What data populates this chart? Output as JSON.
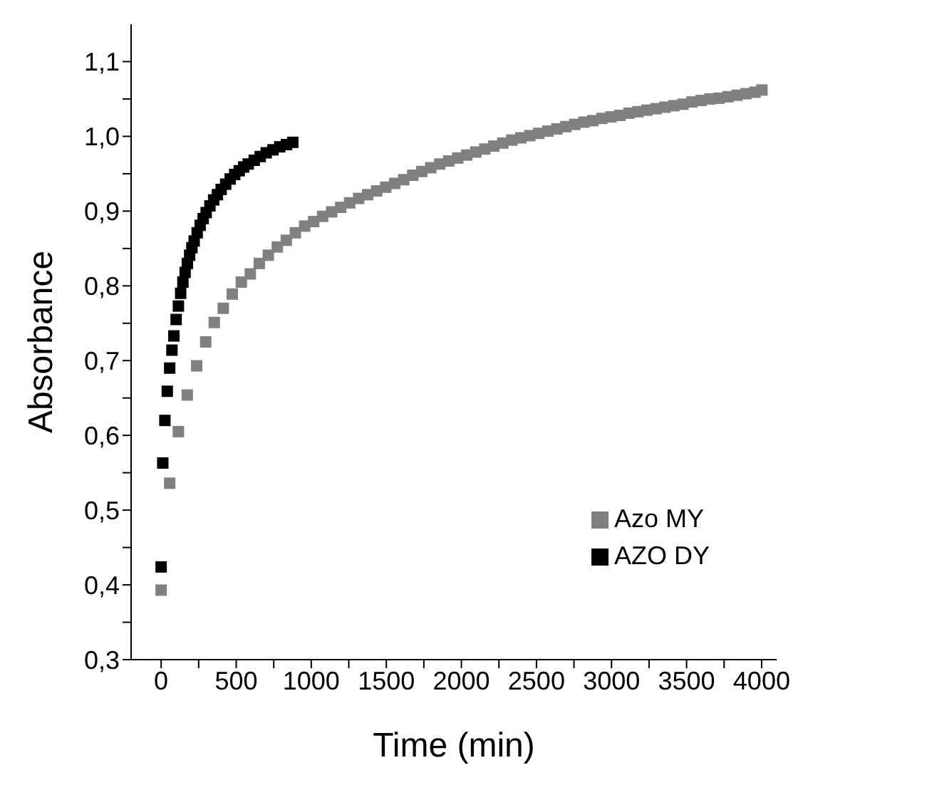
{
  "chart_data": {
    "type": "scatter",
    "xlabel": "Time (min)",
    "ylabel": "Absorbance",
    "marker": "square",
    "legend": "bottom right",
    "grid": false,
    "xlim": [
      -200,
      4100
    ],
    "ylim": [
      0.3,
      1.15
    ],
    "xticks": [
      0,
      {
        "value": 250,
        "label": null
      },
      500,
      {
        "value": 750,
        "label": null
      },
      1000,
      {
        "value": 1250,
        "label": null
      },
      1500,
      {
        "value": 1750,
        "label": null
      },
      2000,
      {
        "value": 2250,
        "label": null
      },
      2500,
      {
        "value": 2750,
        "label": null
      },
      3000,
      {
        "value": 3250,
        "label": null
      },
      3500,
      {
        "value": 3750,
        "label": null
      },
      4000
    ],
    "yticks": [
      {
        "value": 0.3,
        "label": "0,3"
      },
      {
        "value": 0.35,
        "label": null
      },
      {
        "value": 0.4,
        "label": "0,4"
      },
      {
        "value": 0.45,
        "label": null
      },
      {
        "value": 0.5,
        "label": "0,5"
      },
      {
        "value": 0.55,
        "label": null
      },
      {
        "value": 0.6,
        "label": "0,6"
      },
      {
        "value": 0.65,
        "label": null
      },
      {
        "value": 0.7,
        "label": "0,7"
      },
      {
        "value": 0.75,
        "label": null
      },
      {
        "value": 0.8,
        "label": "0,8"
      },
      {
        "value": 0.85,
        "label": null
      },
      {
        "value": 0.9,
        "label": "0,9"
      },
      {
        "value": 0.95,
        "label": null
      },
      {
        "value": 1.0,
        "label": "1,0"
      },
      {
        "value": 1.05,
        "label": null
      },
      {
        "value": 1.1,
        "label": "1,1"
      }
    ],
    "series": [
      {
        "name": "Azo MY",
        "color": "#808080",
        "x": [
          0,
          57,
          115,
          174,
          237,
          297,
          354,
          414,
          474,
          534,
          594,
          654,
          714,
          774,
          834,
          894,
          956,
          1016,
          1076,
          1136,
          1196,
          1256,
          1316,
          1376,
          1436,
          1496,
          1556,
          1616,
          1676,
          1736,
          1796,
          1856,
          1916,
          1976,
          2036,
          2096,
          2156,
          2216,
          2276,
          2336,
          2396,
          2456,
          2516,
          2576,
          2636,
          2696,
          2756,
          2816,
          2876,
          2936,
          2996,
          3056,
          3116,
          3176,
          3236,
          3296,
          3356,
          3416,
          3476,
          3536,
          3596,
          3656,
          3716,
          3776,
          3836,
          3896,
          3956,
          4002
        ],
        "values": [
          0.393,
          0.536,
          0.605,
          0.654,
          0.693,
          0.725,
          0.751,
          0.77,
          0.789,
          0.805,
          0.816,
          0.83,
          0.841,
          0.852,
          0.861,
          0.871,
          0.88,
          0.886,
          0.893,
          0.899,
          0.905,
          0.911,
          0.917,
          0.922,
          0.927,
          0.932,
          0.937,
          0.942,
          0.948,
          0.953,
          0.958,
          0.963,
          0.967,
          0.971,
          0.975,
          0.979,
          0.983,
          0.987,
          0.991,
          0.995,
          0.998,
          1.001,
          1.004,
          1.007,
          1.01,
          1.013,
          1.016,
          1.019,
          1.021,
          1.024,
          1.026,
          1.028,
          1.031,
          1.033,
          1.035,
          1.037,
          1.039,
          1.041,
          1.043,
          1.046,
          1.048,
          1.05,
          1.051,
          1.053,
          1.055,
          1.057,
          1.059,
          1.062
        ]
      },
      {
        "name": "AZO DY",
        "color": "#000000",
        "x": [
          0,
          11,
          25,
          41,
          57,
          72,
          85,
          100,
          115,
          130,
          145,
          160,
          175,
          190,
          205,
          220,
          240,
          260,
          280,
          300,
          325,
          350,
          375,
          400,
          430,
          460,
          490,
          520,
          550,
          580,
          620,
          660,
          700,
          745,
          790,
          835,
          877
        ],
        "values": [
          0.424,
          0.563,
          0.62,
          0.659,
          0.69,
          0.714,
          0.733,
          0.755,
          0.773,
          0.79,
          0.805,
          0.818,
          0.83,
          0.841,
          0.851,
          0.86,
          0.871,
          0.881,
          0.89,
          0.898,
          0.907,
          0.915,
          0.922,
          0.929,
          0.936,
          0.943,
          0.949,
          0.954,
          0.959,
          0.963,
          0.968,
          0.973,
          0.978,
          0.982,
          0.986,
          0.989,
          0.992
        ]
      }
    ]
  }
}
